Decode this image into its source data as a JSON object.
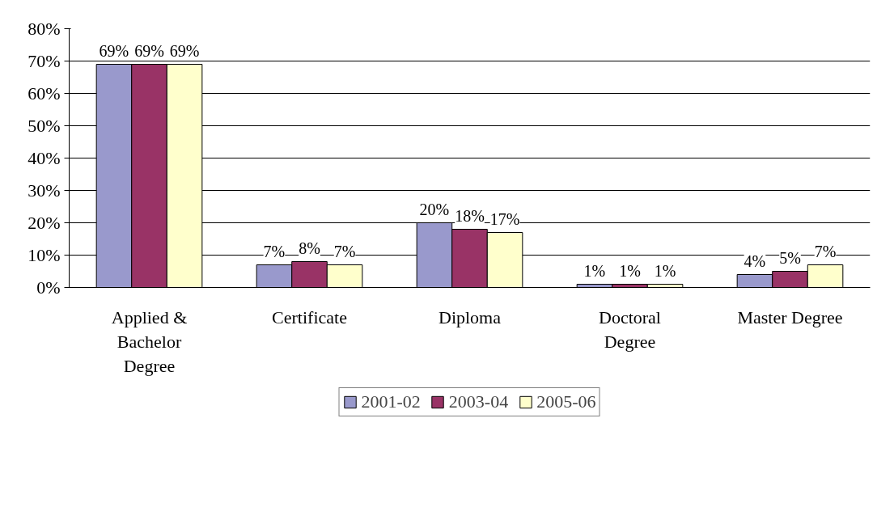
{
  "chart_data": {
    "type": "bar",
    "categories": [
      "Applied & Bachelor Degree",
      "Certificate",
      "Diploma",
      "Doctoral Degree",
      "Master Degree"
    ],
    "series": [
      {
        "name": "2001-02",
        "color": "#9999cc",
        "values": [
          69,
          7,
          20,
          1,
          4
        ],
        "value_labels": [
          "69%",
          "7%",
          "20%",
          "1%",
          "4%"
        ]
      },
      {
        "name": "2003-04",
        "color": "#993366",
        "values": [
          69,
          8,
          18,
          1,
          5
        ],
        "value_labels": [
          "69%",
          "8%",
          "18%",
          "1%",
          "5%"
        ]
      },
      {
        "name": "2005-06",
        "color": "#ffffcc",
        "values": [
          69,
          7,
          17,
          1,
          7
        ],
        "value_labels": [
          "69%",
          "7%",
          "17%",
          "1%",
          "7%"
        ]
      }
    ],
    "ylim": [
      0,
      80
    ],
    "yticks": [
      {
        "value": 0,
        "label": "0%"
      },
      {
        "value": 10,
        "label": "10%"
      },
      {
        "value": 20,
        "label": "20%"
      },
      {
        "value": 30,
        "label": "30%"
      },
      {
        "value": 40,
        "label": "40%"
      },
      {
        "value": 50,
        "label": "50%"
      },
      {
        "value": 60,
        "label": "60%"
      },
      {
        "value": 70,
        "label": "70%"
      },
      {
        "value": 80,
        "label": "80%"
      }
    ],
    "grid": "y",
    "legend": "bottom"
  }
}
